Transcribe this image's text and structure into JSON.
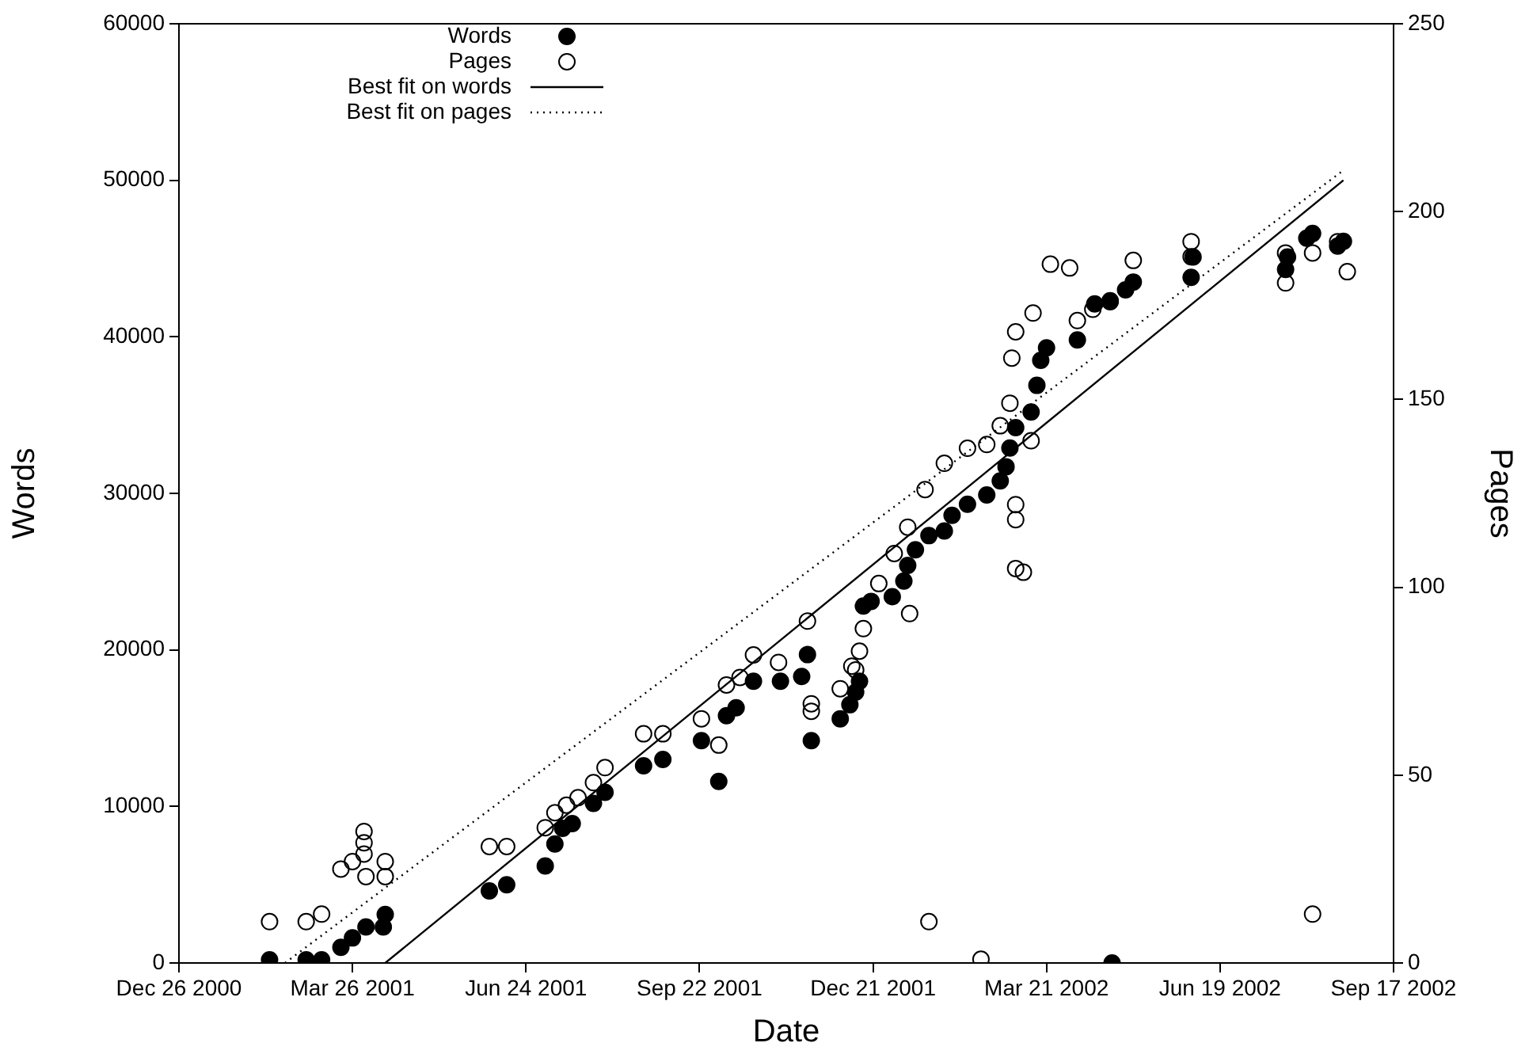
{
  "chart_data": {
    "type": "scatter",
    "xlabel": "Date",
    "ylabel": "Words",
    "y2label": "Pages",
    "legend": "top left",
    "xlim": [
      "2000-12-26",
      "2002-09-17"
    ],
    "xticks": [
      {
        "value": "2000-12-26",
        "label": "Dec 26 2000"
      },
      {
        "value": "2001-03-26",
        "label": "Mar 26 2001"
      },
      {
        "value": "2001-06-24",
        "label": "Jun 24 2001"
      },
      {
        "value": "2001-09-22",
        "label": "Sep 22 2001"
      },
      {
        "value": "2001-12-21",
        "label": "Dec 21 2001"
      },
      {
        "value": "2002-03-21",
        "label": "Mar 21 2002"
      },
      {
        "value": "2002-06-19",
        "label": "Jun 19 2002"
      },
      {
        "value": "2002-09-17",
        "label": "Sep 17 2002"
      }
    ],
    "ylim": [
      0,
      60000
    ],
    "yticks": [
      0,
      10000,
      20000,
      30000,
      40000,
      50000,
      60000
    ],
    "y2lim": [
      0,
      250
    ],
    "y2ticks": [
      0,
      50,
      100,
      150,
      200,
      250
    ],
    "series": [
      {
        "name": "Words",
        "marker": "circle",
        "color": "#000000",
        "x": [
          "2001-02-11",
          "2001-03-02",
          "2001-03-10",
          "2001-03-20",
          "2001-03-26",
          "2001-04-02",
          "2001-04-11",
          "2001-04-12",
          "2001-06-05",
          "2001-06-14",
          "2001-07-04",
          "2001-07-09",
          "2001-07-13",
          "2001-07-18",
          "2001-07-29",
          "2001-08-04",
          "2001-08-24",
          "2001-09-03",
          "2001-09-23",
          "2001-10-02",
          "2001-10-06",
          "2001-10-11",
          "2001-10-20",
          "2001-11-03",
          "2001-11-14",
          "2001-11-17",
          "2001-11-19",
          "2001-12-04",
          "2001-12-09",
          "2001-12-12",
          "2001-12-14",
          "2001-12-16",
          "2001-12-20",
          "2001-12-31",
          "2002-01-06",
          "2002-01-08",
          "2002-01-12",
          "2002-01-19",
          "2002-01-27",
          "2002-01-31",
          "2002-02-08",
          "2002-02-18",
          "2002-02-25",
          "2002-02-28",
          "2002-03-02",
          "2002-03-05",
          "2002-03-13",
          "2002-03-16",
          "2002-03-18",
          "2002-03-21",
          "2002-04-06",
          "2002-04-15",
          "2002-04-23",
          "2002-04-24",
          "2002-05-01",
          "2002-05-05",
          "2002-06-04",
          "2002-06-05",
          "2002-07-23",
          "2002-07-24",
          "2002-08-03",
          "2002-08-06",
          "2002-08-19",
          "2002-08-22"
        ],
        "values": [
          200,
          200,
          200,
          1000,
          1600,
          2300,
          2300,
          3100,
          4600,
          5000,
          6200,
          7600,
          8600,
          8900,
          10200,
          10900,
          12600,
          13000,
          14200,
          11600,
          15800,
          16300,
          18000,
          18000,
          18300,
          19700,
          14200,
          15600,
          16500,
          17300,
          18000,
          22800,
          23100,
          23400,
          24400,
          25400,
          26400,
          27300,
          27600,
          28600,
          29300,
          29900,
          30800,
          31700,
          32900,
          34200,
          35200,
          36900,
          38500,
          39300,
          39800,
          42100,
          42300,
          0,
          43000,
          43500,
          43800,
          45100,
          44300,
          45100,
          46300,
          46600,
          45800,
          46100
        ]
      },
      {
        "name": "Pages",
        "marker": "circle",
        "axis": "y2",
        "color": "#000000",
        "x": [
          "2001-02-11",
          "2001-03-02",
          "2001-03-10",
          "2001-03-20",
          "2001-03-26",
          "2001-04-01",
          "2001-04-01",
          "2001-04-01",
          "2001-04-02",
          "2001-04-12",
          "2001-04-12",
          "2001-06-05",
          "2001-06-14",
          "2001-07-04",
          "2001-07-09",
          "2001-07-15",
          "2001-07-21",
          "2001-07-29",
          "2001-08-04",
          "2001-08-24",
          "2001-09-03",
          "2001-09-23",
          "2001-10-02",
          "2001-10-06",
          "2001-10-13",
          "2001-10-20",
          "2001-11-02",
          "2001-11-17",
          "2001-11-19",
          "2001-11-19",
          "2001-12-04",
          "2001-12-10",
          "2001-12-12",
          "2001-12-14",
          "2001-12-16",
          "2001-12-24",
          "2002-01-01",
          "2002-01-08",
          "2002-01-09",
          "2002-01-17",
          "2002-01-19",
          "2002-01-27",
          "2002-02-08",
          "2002-02-15",
          "2002-02-18",
          "2002-02-25",
          "2002-03-02",
          "2002-03-03",
          "2002-03-05",
          "2002-03-05",
          "2002-03-05",
          "2002-03-05",
          "2002-03-09",
          "2002-03-13",
          "2002-03-14",
          "2002-03-23",
          "2002-04-02",
          "2002-04-06",
          "2002-04-14",
          "2002-04-23",
          "2002-05-05",
          "2002-06-04",
          "2002-06-04",
          "2002-07-23",
          "2002-07-23",
          "2002-08-06",
          "2002-08-06",
          "2002-08-19",
          "2002-08-24"
        ],
        "values": [
          11,
          11,
          13,
          25,
          27,
          35,
          32,
          29,
          23,
          23,
          27,
          31,
          31,
          36,
          40,
          42,
          44,
          48,
          52,
          61,
          61,
          65,
          58,
          74,
          76,
          82,
          80,
          91,
          69,
          67,
          73,
          79,
          78,
          83,
          89,
          101,
          109,
          116,
          93,
          126,
          11,
          133,
          137,
          1,
          138,
          143,
          149,
          161,
          168,
          122,
          118,
          105,
          104,
          139,
          173,
          186,
          185,
          171,
          174,
          176,
          187,
          192,
          188,
          181,
          189,
          189,
          13,
          192,
          184
        ]
      },
      {
        "name": "Best fit on words",
        "type": "line",
        "line_style": "solid",
        "color": "#000000",
        "x": [
          "2001-04-12",
          "2002-08-22"
        ],
        "values": [
          0,
          50000
        ]
      },
      {
        "name": "Best fit on pages",
        "type": "line",
        "line_style": "dotted",
        "axis": "y2",
        "color": "#000000",
        "x": [
          "2001-02-19",
          "2002-08-22"
        ],
        "values": [
          0,
          211
        ]
      }
    ]
  }
}
